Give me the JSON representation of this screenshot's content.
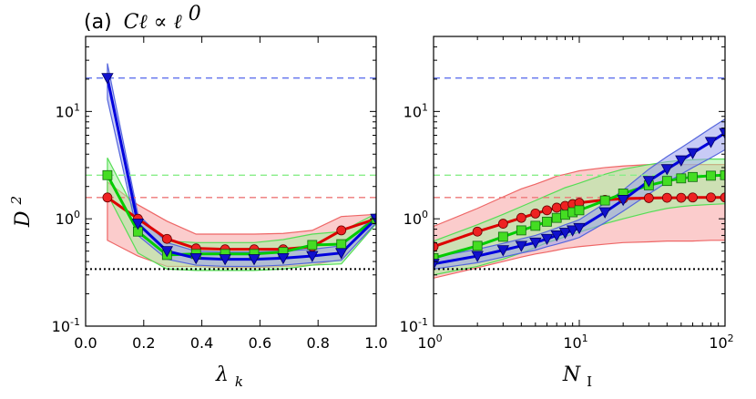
{
  "chart_data": [
    {
      "type": "line",
      "panel": "left",
      "title_prefix": "(a)",
      "title_math": "Cℓ ∝ ℓ",
      "title_exp": "0",
      "xlabel": "λ",
      "xlabel_sub": "k",
      "ylabel": "D",
      "ylabel_sup": "2",
      "xscale": "linear",
      "yscale": "log",
      "xlim": [
        0.0,
        1.0
      ],
      "ylim": [
        0.1,
        50
      ],
      "xticks": [
        {
          "value": 0.0,
          "label": "0.0"
        },
        {
          "value": 0.2,
          "label": "0.2"
        },
        {
          "value": 0.4,
          "label": "0.4"
        },
        {
          "value": 0.6,
          "label": "0.6"
        },
        {
          "value": 0.8,
          "label": "0.8"
        },
        {
          "value": 1.0,
          "label": "1.0"
        }
      ],
      "yticks": [
        {
          "value": 0.1,
          "base": "10",
          "exp": "-1"
        },
        {
          "value": 1,
          "base": "10",
          "exp": "0"
        },
        {
          "value": 10,
          "base": "10",
          "exp": "1"
        }
      ],
      "hlines": [
        {
          "y": 20.5,
          "color": "#6677ee",
          "style": "dashed"
        },
        {
          "y": 2.55,
          "color": "#88ee88",
          "style": "dashed"
        },
        {
          "y": 1.58,
          "color": "#ee7777",
          "style": "dashed"
        },
        {
          "y": 0.34,
          "color": "#000000",
          "style": "dotted"
        }
      ],
      "series": [
        {
          "name": "red-circles",
          "color": "#dd0000",
          "marker": "circle",
          "marker_fill": "#ee2222",
          "band_fill": "#f7a3a3",
          "band_edge": "#ee6666",
          "x": [
            0.075,
            0.18,
            0.28,
            0.38,
            0.48,
            0.58,
            0.68,
            0.78,
            0.88,
            1.0
          ],
          "y": [
            1.58,
            1.0,
            0.65,
            0.53,
            0.52,
            0.52,
            0.52,
            0.55,
            0.78,
            1.0
          ],
          "lower": [
            0.63,
            0.45,
            0.36,
            0.36,
            0.35,
            0.35,
            0.36,
            0.37,
            0.42,
            0.9
          ],
          "upper": [
            2.2,
            1.35,
            0.95,
            0.72,
            0.72,
            0.72,
            0.73,
            0.78,
            1.05,
            1.1
          ]
        },
        {
          "name": "green-squares",
          "color": "#00cc00",
          "marker": "square",
          "marker_fill": "#44dd22",
          "band_fill": "#a8f0a0",
          "band_edge": "#55dd55",
          "x": [
            0.075,
            0.18,
            0.28,
            0.38,
            0.48,
            0.58,
            0.68,
            0.78,
            0.88,
            1.0
          ],
          "y": [
            2.55,
            0.76,
            0.46,
            0.47,
            0.47,
            0.47,
            0.49,
            0.57,
            0.58,
            1.0
          ],
          "lower": [
            1.7,
            0.48,
            0.34,
            0.33,
            0.33,
            0.33,
            0.34,
            0.37,
            0.38,
            0.9
          ],
          "upper": [
            3.7,
            1.05,
            0.62,
            0.6,
            0.6,
            0.6,
            0.64,
            0.72,
            0.76,
            1.12
          ]
        },
        {
          "name": "blue-triangles",
          "color": "#0000dd",
          "marker": "triangle-down",
          "marker_fill": "#1111cc",
          "band_fill": "#9aa0ee",
          "band_edge": "#5566dd",
          "x": [
            0.075,
            0.18,
            0.28,
            0.38,
            0.48,
            0.58,
            0.68,
            0.78,
            0.88,
            1.0
          ],
          "y": [
            20.5,
            0.9,
            0.5,
            0.43,
            0.42,
            0.42,
            0.43,
            0.45,
            0.48,
            1.0
          ],
          "lower": [
            13.0,
            0.7,
            0.42,
            0.37,
            0.36,
            0.36,
            0.37,
            0.39,
            0.41,
            0.92
          ],
          "upper": [
            28.0,
            1.1,
            0.6,
            0.5,
            0.49,
            0.49,
            0.5,
            0.52,
            0.56,
            1.08
          ]
        }
      ]
    },
    {
      "type": "line",
      "panel": "right",
      "xlabel": "N",
      "xlabel_sub": "I",
      "xscale": "log",
      "yscale": "log",
      "xlim": [
        1,
        100
      ],
      "ylim": [
        0.1,
        50
      ],
      "xticks": [
        {
          "value": 1,
          "base": "10",
          "exp": "0"
        },
        {
          "value": 10,
          "base": "10",
          "exp": "1"
        },
        {
          "value": 100,
          "base": "10",
          "exp": "2"
        }
      ],
      "yticks": [
        {
          "value": 0.1,
          "base": "10",
          "exp": "-1"
        },
        {
          "value": 1,
          "base": "10",
          "exp": "0"
        },
        {
          "value": 10,
          "base": "10",
          "exp": "1"
        }
      ],
      "hlines": [
        {
          "y": 20.5,
          "color": "#6677ee",
          "style": "dashed"
        },
        {
          "y": 2.55,
          "color": "#88ee88",
          "style": "dashed"
        },
        {
          "y": 1.58,
          "color": "#ee7777",
          "style": "dashed"
        },
        {
          "y": 0.34,
          "color": "#000000",
          "style": "dotted"
        }
      ],
      "series": [
        {
          "name": "red-circles",
          "color": "#dd0000",
          "marker": "circle",
          "marker_fill": "#ee2222",
          "band_fill": "#f7a3a3",
          "band_edge": "#ee6666",
          "x": [
            1,
            2,
            3,
            4,
            5,
            6,
            7,
            8,
            9,
            10,
            15,
            20,
            30,
            40,
            50,
            60,
            80,
            100
          ],
          "y": [
            0.55,
            0.76,
            0.9,
            1.02,
            1.12,
            1.2,
            1.27,
            1.32,
            1.37,
            1.41,
            1.5,
            1.54,
            1.56,
            1.57,
            1.57,
            1.58,
            1.58,
            1.58
          ],
          "lower": [
            0.28,
            0.35,
            0.4,
            0.44,
            0.47,
            0.49,
            0.51,
            0.53,
            0.54,
            0.55,
            0.58,
            0.6,
            0.61,
            0.62,
            0.62,
            0.62,
            0.63,
            0.63
          ],
          "upper": [
            0.85,
            1.25,
            1.6,
            1.9,
            2.1,
            2.3,
            2.5,
            2.6,
            2.7,
            2.8,
            3.0,
            3.1,
            3.2,
            3.2,
            3.2,
            3.2,
            3.2,
            3.2
          ]
        },
        {
          "name": "green-squares",
          "color": "#00cc00",
          "marker": "square",
          "marker_fill": "#44dd22",
          "band_fill": "#a8f0a0",
          "band_edge": "#55dd55",
          "x": [
            1,
            2,
            3,
            4,
            5,
            6,
            7,
            8,
            9,
            10,
            15,
            20,
            30,
            40,
            50,
            60,
            80,
            100
          ],
          "y": [
            0.43,
            0.56,
            0.68,
            0.78,
            0.86,
            0.94,
            1.02,
            1.09,
            1.15,
            1.2,
            1.48,
            1.72,
            2.05,
            2.25,
            2.38,
            2.45,
            2.52,
            2.55
          ],
          "lower": [
            0.3,
            0.36,
            0.42,
            0.48,
            0.54,
            0.6,
            0.64,
            0.68,
            0.72,
            0.75,
            0.9,
            1.0,
            1.15,
            1.25,
            1.3,
            1.33,
            1.36,
            1.38
          ],
          "upper": [
            0.62,
            0.88,
            1.1,
            1.3,
            1.48,
            1.65,
            1.8,
            1.95,
            2.05,
            2.15,
            2.6,
            2.9,
            3.2,
            3.4,
            3.5,
            3.55,
            3.6,
            3.6
          ]
        },
        {
          "name": "blue-triangles",
          "color": "#0000dd",
          "marker": "triangle-down",
          "marker_fill": "#1111cc",
          "band_fill": "#9aa0ee",
          "band_edge": "#5566dd",
          "x": [
            1,
            2,
            3,
            4,
            5,
            6,
            7,
            8,
            9,
            10,
            15,
            20,
            30,
            40,
            50,
            60,
            80,
            100
          ],
          "y": [
            0.38,
            0.45,
            0.51,
            0.56,
            0.6,
            0.65,
            0.7,
            0.74,
            0.78,
            0.82,
            1.15,
            1.5,
            2.25,
            2.9,
            3.5,
            4.1,
            5.2,
            6.3
          ],
          "lower": [
            0.34,
            0.39,
            0.44,
            0.48,
            0.51,
            0.55,
            0.58,
            0.61,
            0.64,
            0.67,
            0.92,
            1.18,
            1.7,
            2.2,
            2.6,
            3.0,
            3.7,
            4.4
          ],
          "upper": [
            0.44,
            0.52,
            0.59,
            0.65,
            0.7,
            0.76,
            0.82,
            0.88,
            0.93,
            0.98,
            1.4,
            1.85,
            2.9,
            3.8,
            4.6,
            5.4,
            7.0,
            8.5
          ]
        }
      ]
    }
  ]
}
